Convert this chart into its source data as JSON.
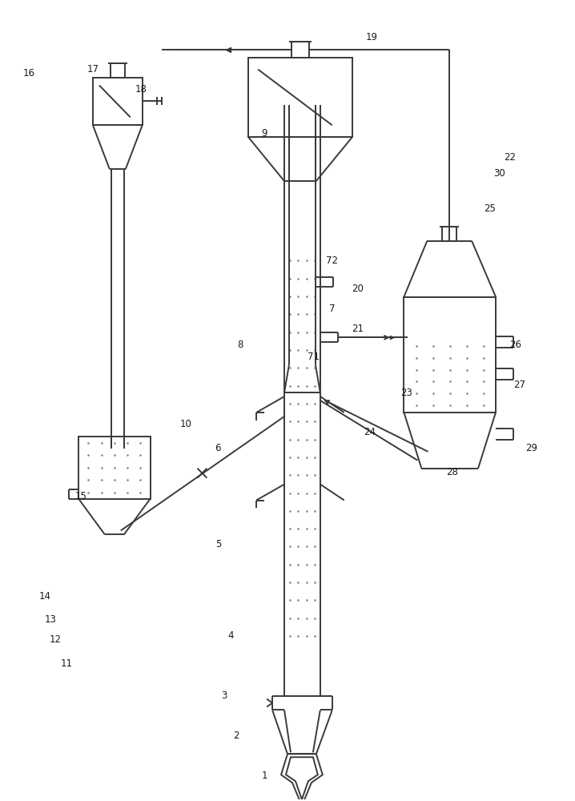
{
  "bg_color": "#ffffff",
  "lc": "#3a3a3a",
  "lw": 1.4,
  "fig_w": 7.18,
  "fig_h": 10.0,
  "labels": [
    [
      330,
      970,
      "1"
    ],
    [
      295,
      920,
      "2"
    ],
    [
      280,
      870,
      "3"
    ],
    [
      288,
      795,
      "4"
    ],
    [
      272,
      680,
      "5"
    ],
    [
      272,
      560,
      "6"
    ],
    [
      415,
      385,
      "7"
    ],
    [
      300,
      430,
      "8"
    ],
    [
      330,
      165,
      "9"
    ],
    [
      232,
      530,
      "10"
    ],
    [
      82,
      830,
      "11"
    ],
    [
      68,
      800,
      "12"
    ],
    [
      62,
      775,
      "13"
    ],
    [
      55,
      745,
      "14"
    ],
    [
      100,
      620,
      "15"
    ],
    [
      35,
      90,
      "16"
    ],
    [
      115,
      85,
      "17"
    ],
    [
      175,
      110,
      "18"
    ],
    [
      465,
      45,
      "19"
    ],
    [
      447,
      360,
      "20"
    ],
    [
      447,
      410,
      "21"
    ],
    [
      638,
      195,
      "22"
    ],
    [
      508,
      490,
      "23"
    ],
    [
      462,
      540,
      "24"
    ],
    [
      613,
      260,
      "25"
    ],
    [
      645,
      430,
      "26"
    ],
    [
      650,
      480,
      "27"
    ],
    [
      565,
      590,
      "28"
    ],
    [
      665,
      560,
      "29"
    ],
    [
      625,
      215,
      "30"
    ],
    [
      392,
      445,
      "71"
    ],
    [
      415,
      325,
      "72"
    ]
  ]
}
